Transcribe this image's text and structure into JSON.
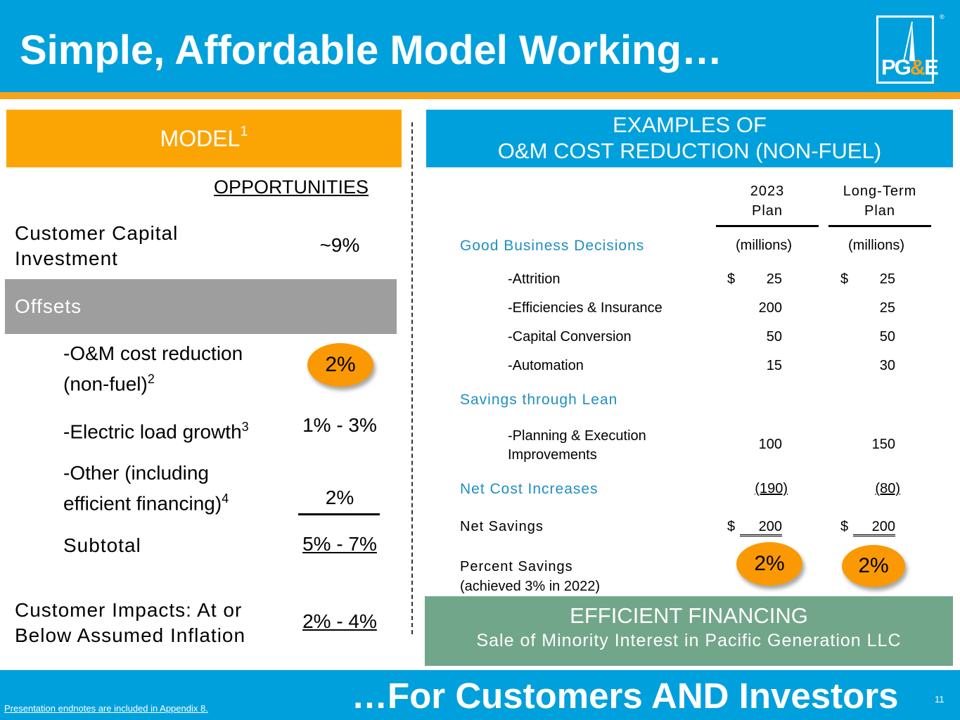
{
  "header": {
    "title": "Simple, Affordable Model Working…",
    "logo_text_pg": "PG",
    "logo_text_amp": "&",
    "logo_text_e": "E",
    "reg_mark": "®"
  },
  "model": {
    "heading": "MODEL",
    "heading_sup": "1",
    "opportunities_label": "OPPORTUNITIES",
    "customer_capital_line1": "Customer Capital",
    "customer_capital_line2": "Investment",
    "customer_capital_value": "~9%",
    "offsets_label": "Offsets",
    "om_line1": "-O&M cost reduction",
    "om_line2": "(non-fuel)",
    "om_sup": "2",
    "om_value": "2%",
    "load_label": "-Electric load growth",
    "load_sup": "3",
    "load_value": "1% - 3%",
    "other_line1": "-Other (including",
    "other_line2": "efficient financing)",
    "other_sup": "4",
    "other_value": "2%",
    "subtotal_label": "Subtotal",
    "subtotal_value": "5% - 7%",
    "impacts_line1": "Customer Impacts: At or",
    "impacts_line2": "Below Assumed Inflation",
    "impacts_value": "2% - 4%"
  },
  "examples": {
    "heading_line1": "EXAMPLES OF",
    "heading_line2": "O&M COST REDUCTION (NON-FUEL)",
    "col1_line1": "2023",
    "col1_line2": "Plan",
    "col2_line1": "Long-Term",
    "col2_line2": "Plan",
    "units": "(millions)",
    "section_good": "Good Business Decisions",
    "items": [
      {
        "label": "-Attrition",
        "dollar": "$",
        "v2023": "25",
        "vlong": "25"
      },
      {
        "label": "-Efficiencies & Insurance",
        "dollar": "",
        "v2023": "200",
        "vlong": "25"
      },
      {
        "label": "-Capital Conversion",
        "dollar": "",
        "v2023": "50",
        "vlong": "50"
      },
      {
        "label": "-Automation",
        "dollar": "",
        "v2023": "15",
        "vlong": "30"
      }
    ],
    "section_lean": "Savings through Lean",
    "lean_line1": "-Planning & Execution",
    "lean_line2": "Improvements",
    "lean_2023": "100",
    "lean_long": "150",
    "section_net_cost": "Net Cost Increases",
    "net_cost_2023": "(190)",
    "net_cost_long": "(80)",
    "net_savings_label": "Net Savings",
    "net_savings_dollar": "$",
    "net_savings_2023": "200",
    "net_savings_long": "200",
    "percent_line1": "Percent Savings",
    "percent_line2": "(achieved 3% in 2022)",
    "percent_2023": "2%",
    "percent_long": "2%"
  },
  "financing": {
    "title": "EFFICIENT FINANCING",
    "subtitle": "Sale of Minority Interest in Pacific Generation LLC"
  },
  "footer": {
    "tagline": "…For Customers AND Investors",
    "page_number": "11",
    "endnote": "Presentation endnotes are included in Appendix 8."
  },
  "colors": {
    "blue": "#00a0dc",
    "orange": "#fba505",
    "gray": "#9e9e9e",
    "green": "#72a68a",
    "section_blue": "#1f8ec2"
  }
}
